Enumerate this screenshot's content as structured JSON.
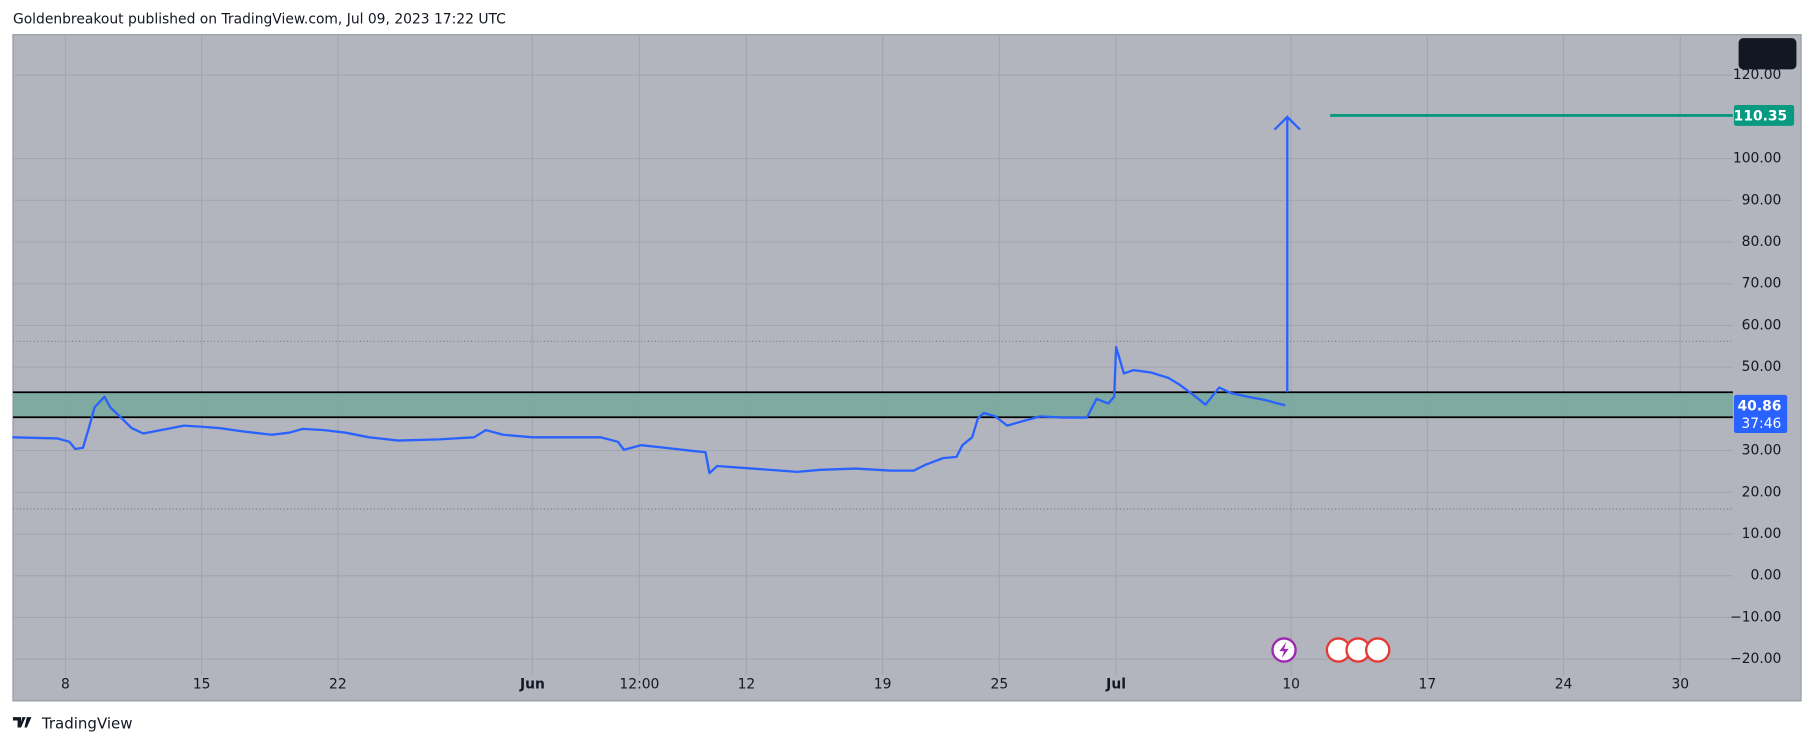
{
  "chart_data": {
    "type": "line",
    "title": "Goldenbreakout published on TradingView.com, Jul 09, 2023 17:22 UTC",
    "footer": "TradingView",
    "x": [
      5.27,
      7.6,
      8.2,
      8.5,
      8.9,
      9.2,
      9.5,
      10.0,
      10.3,
      10.9,
      11.4,
      12.0,
      12.9,
      14.1,
      15.0,
      15.9,
      17.1,
      18.6,
      19.5,
      20.2,
      21.3,
      22.4,
      23.6,
      25.1,
      27.2,
      29.0,
      29.6,
      30.5,
      32.0,
      33.7,
      35.5,
      36.4,
      36.7,
      37.6,
      38.8,
      40.3,
      40.9,
      41.1,
      41.5,
      43.3,
      45.6,
      46.8,
      48.6,
      50.4,
      51.6,
      52.2,
      53.1,
      53.8,
      54.1,
      54.6,
      54.9,
      55.2,
      55.8,
      56.4,
      57.0,
      58.1,
      59.3,
      60.5,
      61.0,
      61.6,
      61.9,
      62.0,
      62.4,
      62.9,
      63.8,
      64.7,
      65.3,
      66.1,
      66.6,
      67.3,
      67.9,
      68.8,
      69.7,
      70.3,
      70.7
    ],
    "values": [
      33.2,
      32.9,
      32.1,
      30.4,
      30.7,
      35.4,
      40.4,
      42.9,
      40.4,
      37.7,
      35.4,
      34.1,
      34.9,
      36.0,
      35.7,
      35.4,
      34.6,
      33.8,
      34.3,
      35.2,
      34.9,
      34.3,
      33.2,
      32.4,
      32.7,
      33.2,
      34.9,
      33.8,
      33.2,
      33.2,
      33.2,
      32.1,
      30.2,
      31.3,
      30.7,
      29.9,
      29.6,
      24.6,
      26.3,
      25.7,
      24.9,
      25.4,
      25.7,
      25.2,
      25.2,
      26.6,
      28.2,
      28.5,
      31.3,
      33.2,
      37.7,
      39.0,
      38.2,
      36.0,
      36.8,
      38.2,
      37.9,
      37.9,
      42.4,
      41.3,
      42.9,
      54.8,
      48.5,
      49.3,
      48.7,
      47.4,
      45.7,
      42.9,
      41.0,
      45.1,
      43.8,
      42.9,
      42.1,
      41.3,
      40.86
    ],
    "color": "#2962ff",
    "last_price": 40.86,
    "countdown": "37:46",
    "zone": {
      "low": 38.0,
      "high": 44.0,
      "color": "#74a89c"
    },
    "arrow": {
      "x": 70.8,
      "from": 44.0,
      "to": 110.0
    },
    "target": {
      "x": 73.0,
      "value": 110.35,
      "color": "#089981"
    },
    "dotted_levels": [
      56.2,
      16.0
    ],
    "xlim": [
      5.3,
      93.7
    ],
    "ylim": [
      -30,
      129.7
    ],
    "xticks": [
      8,
      15,
      22,
      {
        "value": 32,
        "label": "Jun"
      },
      {
        "value": 37.5,
        "label": "12:00"
      },
      {
        "value": 43,
        "label": "12"
      },
      {
        "value": 50,
        "label": "19"
      },
      {
        "value": 56,
        "label": "25"
      },
      {
        "value": 62,
        "label": "Jul"
      },
      {
        "value": 71,
        "label": "10"
      },
      {
        "value": 78,
        "label": "17"
      },
      {
        "value": 85,
        "label": "24"
      },
      {
        "value": 91,
        "label": "30"
      }
    ],
    "yticks": [
      {
        "value": 120,
        "label": "120.00"
      },
      {
        "value": 100,
        "label": "100.00"
      },
      {
        "value": 90,
        "label": "90.00"
      },
      {
        "value": 80,
        "label": "80.00"
      },
      {
        "value": 70,
        "label": "70.00"
      },
      {
        "value": 60,
        "label": "60.00"
      },
      {
        "value": 50,
        "label": "50.00"
      },
      {
        "value": 30,
        "label": "30.00"
      },
      {
        "value": 20,
        "label": "20.00"
      },
      {
        "value": 10,
        "label": "10.00"
      },
      {
        "value": 0,
        "label": "0.00"
      },
      {
        "value": -10,
        "label": "−10.00"
      },
      {
        "value": -20,
        "label": "−20.00"
      }
    ],
    "grid": true
  }
}
